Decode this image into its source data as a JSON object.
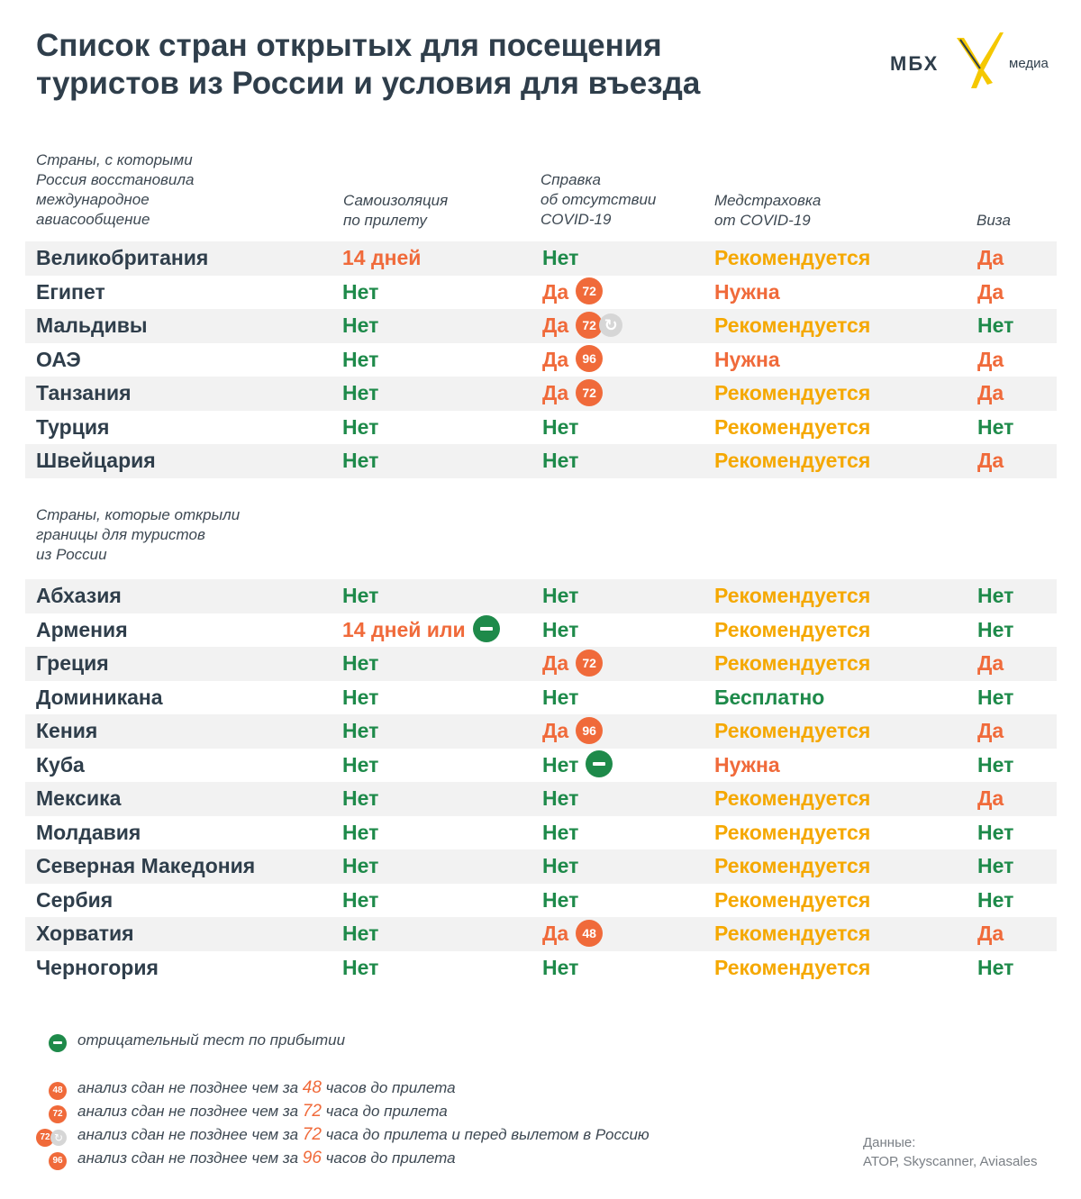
{
  "title_line1": "Список стран открытых для посещения",
  "title_line2": "туристов из России и условия для въезда",
  "logo": {
    "name": "МБХ",
    "sub": "медиа",
    "icon": "x-mark-icon",
    "accent": "#f5c800"
  },
  "headers": {
    "group1": [
      "Страны, с которыми",
      "Россия восстановила",
      "международное",
      "авиасообщение"
    ],
    "isolation": [
      "Самоизоляция",
      "по прилету"
    ],
    "test": [
      "Справка",
      "об отсутствии",
      "COVID-19"
    ],
    "insurance": [
      "Медстраховка",
      "от COVID-19"
    ],
    "visa": "Виза",
    "group2": [
      "Страны, которые открыли",
      "границы для туристов",
      "из России"
    ]
  },
  "colors": {
    "green": "#1e8a4a",
    "orange": "#f06a3a",
    "yellow": "#f5a800",
    "refresh": "#d6d6d6"
  },
  "group1": [
    {
      "country": "Великобритания",
      "iso": "14 дней",
      "iso_color": "orange",
      "test": "Нет",
      "test_color": "green",
      "badge": "",
      "refresh": false,
      "minus": false,
      "ins": "Рекомендуется",
      "ins_color": "yellow",
      "visa": "Да",
      "visa_color": "orange"
    },
    {
      "country": "Египет",
      "iso": "Нет",
      "iso_color": "green",
      "test": "Да",
      "test_color": "orange",
      "badge": "72",
      "refresh": false,
      "minus": false,
      "ins": "Нужна",
      "ins_color": "orange",
      "visa": "Да",
      "visa_color": "orange"
    },
    {
      "country": "Мальдивы",
      "iso": "Нет",
      "iso_color": "green",
      "test": "Да",
      "test_color": "orange",
      "badge": "72",
      "refresh": true,
      "minus": false,
      "ins": "Рекомендуется",
      "ins_color": "yellow",
      "visa": "Нет",
      "visa_color": "green"
    },
    {
      "country": "ОАЭ",
      "iso": "Нет",
      "iso_color": "green",
      "test": "Да",
      "test_color": "orange",
      "badge": "96",
      "refresh": false,
      "minus": false,
      "ins": "Нужна",
      "ins_color": "orange",
      "visa": "Да",
      "visa_color": "orange"
    },
    {
      "country": "Танзания",
      "iso": "Нет",
      "iso_color": "green",
      "test": "Да",
      "test_color": "orange",
      "badge": "72",
      "refresh": false,
      "minus": false,
      "ins": "Рекомендуется",
      "ins_color": "yellow",
      "visa": "Да",
      "visa_color": "orange"
    },
    {
      "country": "Турция",
      "iso": "Нет",
      "iso_color": "green",
      "test": "Нет",
      "test_color": "green",
      "badge": "",
      "refresh": false,
      "minus": false,
      "ins": "Рекомендуется",
      "ins_color": "yellow",
      "visa": "Нет",
      "visa_color": "green"
    },
    {
      "country": "Швейцария",
      "iso": "Нет",
      "iso_color": "green",
      "test": "Нет",
      "test_color": "green",
      "badge": "",
      "refresh": false,
      "minus": false,
      "ins": "Рекомендуется",
      "ins_color": "yellow",
      "visa": "Да",
      "visa_color": "orange"
    }
  ],
  "group2": [
    {
      "country": "Абхазия",
      "iso": "Нет",
      "iso_color": "green",
      "iso_minus": false,
      "test": "Нет",
      "test_color": "green",
      "badge": "",
      "refresh": false,
      "minus": false,
      "ins": "Рекомендуется",
      "ins_color": "yellow",
      "visa": "Нет",
      "visa_color": "green"
    },
    {
      "country": "Армения",
      "iso": "14 дней или",
      "iso_color": "orange",
      "iso_minus": true,
      "test": "Нет",
      "test_color": "green",
      "badge": "",
      "refresh": false,
      "minus": false,
      "ins": "Рекомендуется",
      "ins_color": "yellow",
      "visa": "Нет",
      "visa_color": "green"
    },
    {
      "country": "Греция",
      "iso": "Нет",
      "iso_color": "green",
      "iso_minus": false,
      "test": "Да",
      "test_color": "orange",
      "badge": "72",
      "refresh": false,
      "minus": false,
      "ins": "Рекомендуется",
      "ins_color": "yellow",
      "visa": "Да",
      "visa_color": "orange"
    },
    {
      "country": "Доминикана",
      "iso": "Нет",
      "iso_color": "green",
      "iso_minus": false,
      "test": "Нет",
      "test_color": "green",
      "badge": "",
      "refresh": false,
      "minus": false,
      "ins": "Бесплатно",
      "ins_color": "green",
      "visa": "Нет",
      "visa_color": "green"
    },
    {
      "country": "Кения",
      "iso": "Нет",
      "iso_color": "green",
      "iso_minus": false,
      "test": "Да",
      "test_color": "orange",
      "badge": "96",
      "refresh": false,
      "minus": false,
      "ins": "Рекомендуется",
      "ins_color": "yellow",
      "visa": "Да",
      "visa_color": "orange"
    },
    {
      "country": "Куба",
      "iso": "Нет",
      "iso_color": "green",
      "iso_minus": false,
      "test": "Нет",
      "test_color": "green",
      "badge": "",
      "refresh": false,
      "minus": true,
      "ins": "Нужна",
      "ins_color": "orange",
      "visa": "Нет",
      "visa_color": "green"
    },
    {
      "country": "Мексика",
      "iso": "Нет",
      "iso_color": "green",
      "iso_minus": false,
      "test": "Нет",
      "test_color": "green",
      "badge": "",
      "refresh": false,
      "minus": false,
      "ins": "Рекомендуется",
      "ins_color": "yellow",
      "visa": "Да",
      "visa_color": "orange"
    },
    {
      "country": "Молдавия",
      "iso": "Нет",
      "iso_color": "green",
      "iso_minus": false,
      "test": "Нет",
      "test_color": "green",
      "badge": "",
      "refresh": false,
      "minus": false,
      "ins": "Рекомендуется",
      "ins_color": "yellow",
      "visa": "Нет",
      "visa_color": "green"
    },
    {
      "country": "Северная Македония",
      "iso": "Нет",
      "iso_color": "green",
      "iso_minus": false,
      "test": "Нет",
      "test_color": "green",
      "badge": "",
      "refresh": false,
      "minus": false,
      "ins": "Рекомендуется",
      "ins_color": "yellow",
      "visa": "Нет",
      "visa_color": "green"
    },
    {
      "country": "Сербия",
      "iso": "Нет",
      "iso_color": "green",
      "iso_minus": false,
      "test": "Нет",
      "test_color": "green",
      "badge": "",
      "refresh": false,
      "minus": false,
      "ins": "Рекомендуется",
      "ins_color": "yellow",
      "visa": "Нет",
      "visa_color": "green"
    },
    {
      "country": "Хорватия",
      "iso": "Нет",
      "iso_color": "green",
      "iso_minus": false,
      "test": "Да",
      "test_color": "orange",
      "badge": "48",
      "refresh": false,
      "minus": false,
      "ins": "Рекомендуется",
      "ins_color": "yellow",
      "visa": "Да",
      "visa_color": "orange"
    },
    {
      "country": "Черногория",
      "iso": "Нет",
      "iso_color": "green",
      "iso_minus": false,
      "test": "Нет",
      "test_color": "green",
      "badge": "",
      "refresh": false,
      "minus": false,
      "ins": "Рекомендуется",
      "ins_color": "yellow",
      "visa": "Нет",
      "visa_color": "green"
    }
  ],
  "legend": {
    "minus_text": "отрицательный тест по прибытии",
    "items": [
      {
        "badge": "48",
        "refresh": false,
        "pre": "анализ сдан не позднее чем за ",
        "num": "48",
        "post": " часов до прилета"
      },
      {
        "badge": "72",
        "refresh": false,
        "pre": "анализ сдан не позднее чем за ",
        "num": "72",
        "post": " часа до прилета"
      },
      {
        "badge": "72",
        "refresh": true,
        "pre": "анализ сдан не позднее чем за ",
        "num": "72",
        "post": " часа до прилета и перед вылетом в Россию"
      },
      {
        "badge": "96",
        "refresh": false,
        "pre": "анализ сдан не позднее чем за ",
        "num": "96",
        "post": " часов до прилета"
      }
    ]
  },
  "source": {
    "label": "Данные:",
    "text": "АТОР, Skyscanner, Aviasales"
  }
}
